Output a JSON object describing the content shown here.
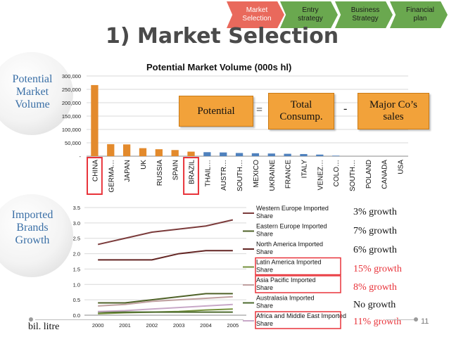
{
  "steps": [
    {
      "label_1": "Market",
      "label_2": "Selection",
      "active": true
    },
    {
      "label_1": "Entry",
      "label_2": "strategy",
      "active": false
    },
    {
      "label_1": "Business",
      "label_2": "Strategy",
      "active": false
    },
    {
      "label_1": "Financial",
      "label_2": "plan",
      "active": false
    }
  ],
  "title": "1) Market Selection",
  "bubbles": {
    "potential": [
      "Potential",
      "Market",
      "Volume"
    ],
    "imported": [
      "Imported",
      "Brands",
      "Growth"
    ]
  },
  "formula": {
    "potential": "Potential",
    "equals": "=",
    "total_1": "Total",
    "total_2": "Consump.",
    "minus": "-",
    "major_1": "Major Co’s",
    "major_2": "sales"
  },
  "growth_labels": [
    {
      "text": "3% growth",
      "highlight": false
    },
    {
      "text": "7% growth",
      "highlight": false
    },
    {
      "text": "6% growth",
      "highlight": false
    },
    {
      "text": "15% growth",
      "highlight": true
    },
    {
      "text": "8% growth",
      "highlight": true
    },
    {
      "text": "No growth",
      "highlight": false
    },
    {
      "text": "11% growth",
      "highlight": true
    }
  ],
  "unit_label": "bil. litre",
  "page_number": "11",
  "colors": {
    "orange": "#e38a2c",
    "blue": "#4f81bd",
    "highlight": "#e8333a",
    "step_active": "#e9695c",
    "step_inactive": "#6aa84f",
    "bubble_text": "#3a6fa6"
  },
  "chart_data": [
    {
      "type": "bar",
      "title": "Potential Market Volume (000s hl)",
      "xlabel": "",
      "ylabel": "",
      "ylim": [
        0,
        300000
      ],
      "yticks": [
        0,
        50000,
        100000,
        150000,
        200000,
        250000,
        300000
      ],
      "ytick_labels": [
        "-",
        "50,000",
        "100,000",
        "150,000",
        "200,000",
        "250,000",
        "300,000"
      ],
      "categories": [
        "CHINA",
        "GERMA…",
        "JAPAN",
        "UK",
        "RUSSIA",
        "SPAIN",
        "BRAZIL",
        "THAIL…",
        "AUSTR…",
        "SOUTH…",
        "MEXICO",
        "UKRAINE",
        "FRANCE",
        "ITALY",
        "VENEZ…",
        "COLO…",
        "SOUTH…",
        "POLAND",
        "CANADA",
        "USA"
      ],
      "values": [
        266000,
        45000,
        44000,
        30000,
        26000,
        23000,
        17000,
        15000,
        14000,
        12000,
        11000,
        10000,
        9000,
        8000,
        6000,
        2000,
        0,
        0,
        0,
        0
      ],
      "bar_colors": [
        "orange",
        "orange",
        "orange",
        "orange",
        "orange",
        "orange",
        "orange",
        "blue",
        "blue",
        "blue",
        "blue",
        "blue",
        "blue",
        "blue",
        "blue",
        "blue",
        "blue",
        "blue",
        "blue",
        "blue"
      ],
      "highlighted": [
        "CHINA",
        "BRAZIL"
      ],
      "grid": true
    },
    {
      "type": "line",
      "title": "",
      "xlabel": "",
      "ylabel": "",
      "x": [
        "2000",
        "2001",
        "2002",
        "2003",
        "2004",
        "2005"
      ],
      "ylim": [
        0,
        3.5
      ],
      "yticks": [
        "0.0",
        "0.5",
        "1.0",
        "1.5",
        "2.0",
        "2.5",
        "3.0",
        "3.5"
      ],
      "legend_position": "right",
      "grid": true,
      "series": [
        {
          "name": "Western Europe Imported Share",
          "color": "#7b3b3b",
          "values": [
            2.3,
            2.5,
            2.7,
            2.8,
            2.9,
            3.1
          ],
          "highlight": false
        },
        {
          "name": "Eastern Europe Imported Share",
          "color": "#4f6228",
          "values": [
            0.4,
            0.4,
            0.5,
            0.6,
            0.7,
            0.7
          ],
          "highlight": false
        },
        {
          "name": "North America Imported Share",
          "color": "#632523",
          "values": [
            1.8,
            1.8,
            1.8,
            2.0,
            2.1,
            2.1
          ],
          "highlight": false
        },
        {
          "name": "Latin America Imported Share",
          "color": "#76923c",
          "values": [
            0.05,
            0.08,
            0.1,
            0.12,
            0.17,
            0.2
          ],
          "highlight": true
        },
        {
          "name": "Asia Pacific Imported Share",
          "color": "#c0a0a0",
          "values": [
            0.3,
            0.35,
            0.45,
            0.5,
            0.55,
            0.6
          ],
          "highlight": true
        },
        {
          "name": "Australasia Imported Share",
          "color": "#4e6b2f",
          "values": [
            0.1,
            0.1,
            0.1,
            0.1,
            0.1,
            0.1
          ],
          "highlight": false
        },
        {
          "name": "Africa and Middle East Imported Share",
          "color": "#c8a8c8",
          "values": [
            0.12,
            0.15,
            0.2,
            0.25,
            0.3,
            0.35
          ],
          "highlight": true
        }
      ]
    }
  ]
}
